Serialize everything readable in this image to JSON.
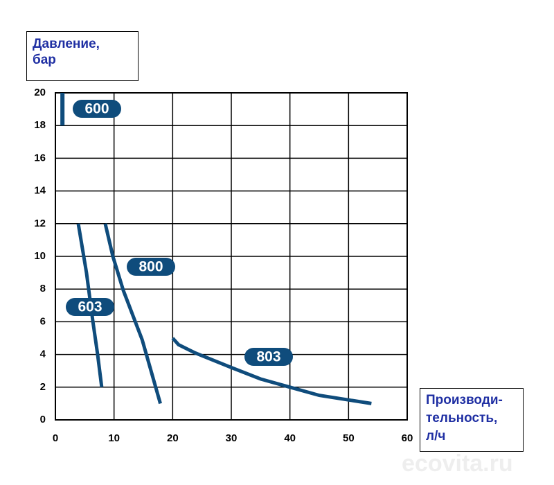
{
  "chart_data": {
    "type": "line",
    "y_label": "Давление,\nбар",
    "x_label": "Производи-\nтельность,\nл/ч",
    "watermark": "ecovita.ru",
    "xlim": [
      0,
      60
    ],
    "xticks": [
      0,
      10,
      20,
      30,
      40,
      50,
      60
    ],
    "ylim": [
      0,
      20
    ],
    "yticks": [
      0,
      2,
      4,
      6,
      8,
      10,
      12,
      14,
      16,
      18,
      20
    ],
    "grid": true,
    "series": [
      {
        "name": "600",
        "color": "#0f4c7c",
        "x": [
          1.2,
          1.2
        ],
        "values": [
          18,
          20
        ]
      },
      {
        "name": "603",
        "color": "#0f4c7c",
        "x": [
          3.9,
          5.3,
          6.4,
          7.2,
          7.9
        ],
        "values": [
          12,
          9,
          6,
          4,
          2
        ]
      },
      {
        "name": "800",
        "color": "#0f4c7c",
        "x": [
          8.5,
          9.8,
          11.6,
          14.8,
          17.9
        ],
        "values": [
          12,
          10,
          7.9,
          4.9,
          1
        ]
      },
      {
        "name": "803",
        "color": "#0f4c7c",
        "x": [
          20,
          21,
          23.8,
          30,
          35,
          40,
          45,
          53.9
        ],
        "values": [
          5,
          4.6,
          4.1,
          3.2,
          2.5,
          2,
          1.5,
          1
        ]
      }
    ]
  }
}
